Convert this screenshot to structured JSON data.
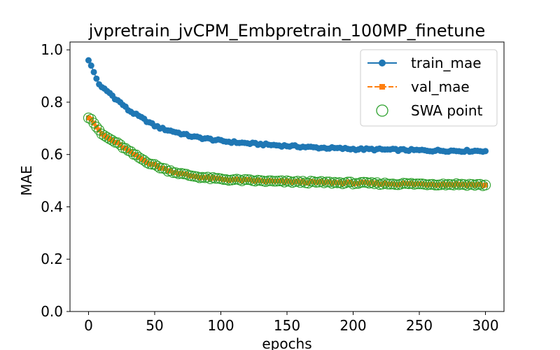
{
  "chart_data": {
    "type": "line",
    "title": "jvpretrain_jvCPM_Embpretrain_100MP_finetune",
    "xlabel": "epochs",
    "ylabel": "MAE",
    "xlim": [
      -14,
      314
    ],
    "ylim": [
      0.0,
      1.03
    ],
    "xticks": [
      0,
      50,
      100,
      150,
      200,
      250,
      300
    ],
    "yticks": [
      0.0,
      0.2,
      0.4,
      0.6,
      0.8,
      1.0
    ],
    "xtick_labels": [
      "0",
      "50",
      "100",
      "150",
      "200",
      "250",
      "300"
    ],
    "ytick_labels": [
      "0.0",
      "0.2",
      "0.4",
      "0.6",
      "0.8",
      "1.0"
    ],
    "grid": false,
    "legend_position": "top-right",
    "x_sampling": {
      "start": 0,
      "end": 300,
      "step": 2
    },
    "series": [
      {
        "name": "train_mae",
        "color": "#1f77b4",
        "line_style": "solid",
        "marker": "circle",
        "anchors": [
          [
            0,
            0.96
          ],
          [
            2,
            0.94
          ],
          [
            4,
            0.915
          ],
          [
            6,
            0.89
          ],
          [
            8,
            0.87
          ],
          [
            10,
            0.855
          ],
          [
            12,
            0.85
          ],
          [
            16,
            0.835
          ],
          [
            20,
            0.815
          ],
          [
            25,
            0.795
          ],
          [
            30,
            0.77
          ],
          [
            35,
            0.755
          ],
          [
            40,
            0.74
          ],
          [
            45,
            0.725
          ],
          [
            50,
            0.71
          ],
          [
            55,
            0.7
          ],
          [
            60,
            0.693
          ],
          [
            65,
            0.687
          ],
          [
            70,
            0.68
          ],
          [
            75,
            0.673
          ],
          [
            80,
            0.667
          ],
          [
            90,
            0.66
          ],
          [
            100,
            0.652
          ],
          [
            110,
            0.647
          ],
          [
            120,
            0.643
          ],
          [
            130,
            0.639
          ],
          [
            140,
            0.636
          ],
          [
            150,
            0.633
          ],
          [
            160,
            0.63
          ],
          [
            170,
            0.627
          ],
          [
            180,
            0.625
          ],
          [
            190,
            0.623
          ],
          [
            200,
            0.621
          ],
          [
            210,
            0.62
          ],
          [
            220,
            0.619
          ],
          [
            230,
            0.618
          ],
          [
            240,
            0.617
          ],
          [
            250,
            0.616
          ],
          [
            260,
            0.615
          ],
          [
            270,
            0.615
          ],
          [
            280,
            0.614
          ],
          [
            290,
            0.614
          ],
          [
            300,
            0.614
          ]
        ],
        "noise": 0.004
      },
      {
        "name": "val_mae",
        "color": "#ff7f0e",
        "line_style": "dashed",
        "marker": "square",
        "anchors": [
          [
            0,
            0.74
          ],
          [
            2,
            0.735
          ],
          [
            4,
            0.72
          ],
          [
            6,
            0.705
          ],
          [
            8,
            0.69
          ],
          [
            10,
            0.678
          ],
          [
            15,
            0.662
          ],
          [
            20,
            0.648
          ],
          [
            25,
            0.632
          ],
          [
            30,
            0.614
          ],
          [
            35,
            0.598
          ],
          [
            40,
            0.583
          ],
          [
            45,
            0.57
          ],
          [
            50,
            0.559
          ],
          [
            55,
            0.549
          ],
          [
            60,
            0.54
          ],
          [
            65,
            0.533
          ],
          [
            70,
            0.526
          ],
          [
            75,
            0.521
          ],
          [
            80,
            0.517
          ],
          [
            90,
            0.51
          ],
          [
            100,
            0.506
          ],
          [
            110,
            0.503
          ],
          [
            120,
            0.501
          ],
          [
            130,
            0.499
          ],
          [
            140,
            0.497
          ],
          [
            150,
            0.496
          ],
          [
            160,
            0.495
          ],
          [
            170,
            0.494
          ],
          [
            180,
            0.493
          ],
          [
            190,
            0.492
          ],
          [
            200,
            0.491
          ],
          [
            210,
            0.49
          ],
          [
            220,
            0.489
          ],
          [
            230,
            0.488
          ],
          [
            240,
            0.488
          ],
          [
            250,
            0.487
          ],
          [
            260,
            0.487
          ],
          [
            270,
            0.486
          ],
          [
            280,
            0.486
          ],
          [
            290,
            0.485
          ],
          [
            300,
            0.483
          ]
        ],
        "noise": 0.004
      },
      {
        "name": "SWA point",
        "color": "#2ca02c",
        "line_style": "none",
        "marker": "hollow-circle",
        "same_as": "val_mae"
      }
    ]
  }
}
